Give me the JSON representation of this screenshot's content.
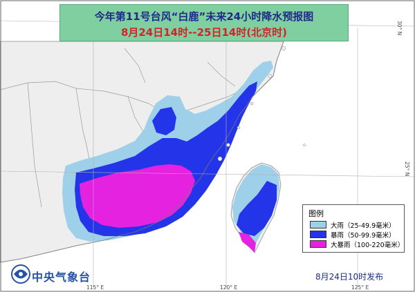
{
  "title": {
    "line1": "今年第11号台风“白鹿”未来24小时降水预报图",
    "line2": "8月24日14时--25日14时(北京时)"
  },
  "legend": {
    "heading": "图例",
    "items": [
      {
        "label": "大雨（25-49.9毫米）",
        "color": "#9ed0ea"
      },
      {
        "label": "暴雨（50-99.9毫米）",
        "color": "#2434e8"
      },
      {
        "label": "大暴雨（100-220毫米）",
        "color": "#e522e0"
      }
    ]
  },
  "footer": {
    "agency": "中央气象台",
    "release": "8月24日10时发布"
  },
  "ticks": {
    "lon_115": "115° E",
    "lon_120": "120° E",
    "lon_125": "125° E",
    "lat_30": "30° N",
    "lat_25": "25° N"
  },
  "colors": {
    "land": "#eeeeee",
    "sea": "#ffffff",
    "border": "#9a9a9a",
    "grid": "#b0b0b0"
  }
}
